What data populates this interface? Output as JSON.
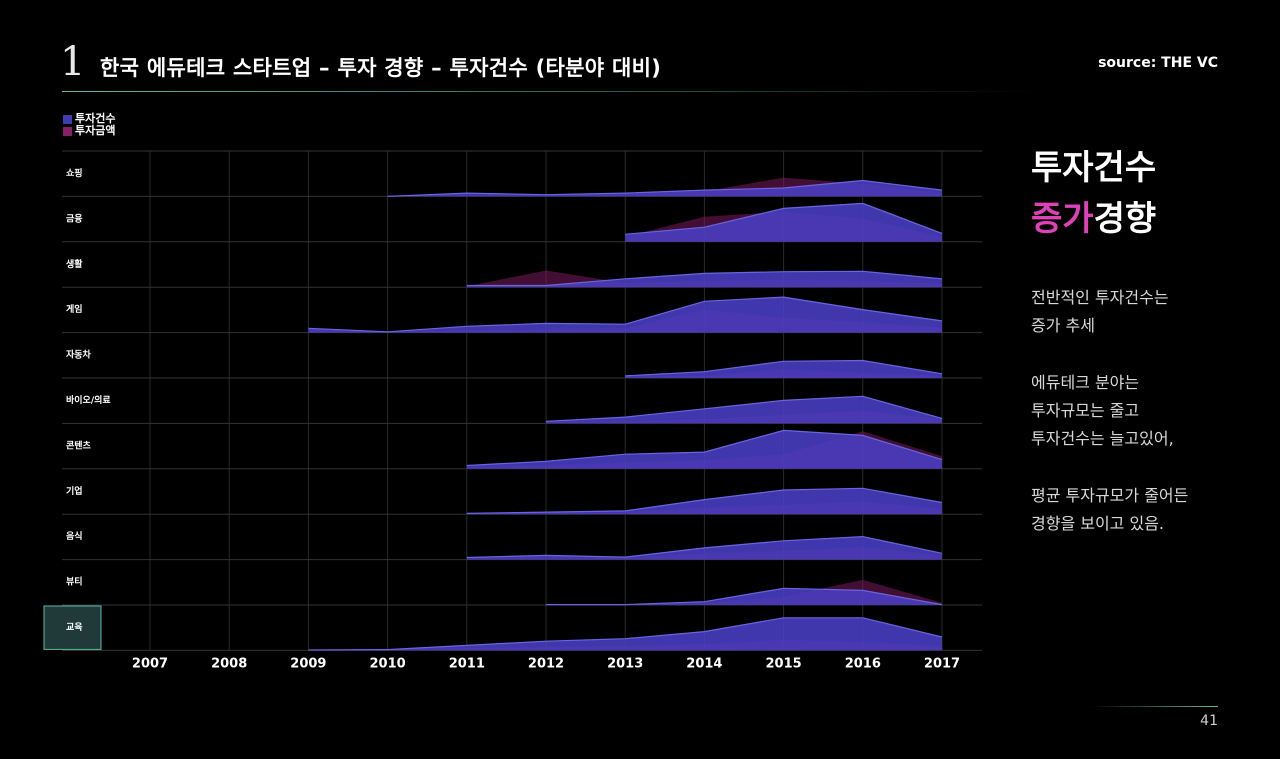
{
  "header": {
    "slide_number": "1",
    "title": "한국 에듀테크 스타트업 – 투자 경향 – 투자건수 (타분야 대비)",
    "source": "source: THE VC"
  },
  "legend": {
    "items": [
      {
        "label": "투자건수",
        "color": "#3f3cb0"
      },
      {
        "label": "투자금액",
        "color": "#8a1e6a"
      }
    ]
  },
  "sidebar": {
    "heading_line1": "투자건수",
    "heading_accent": "증가",
    "heading_rest": "경향",
    "paragraphs": [
      {
        "line1": "전반적인 투자건수는",
        "line2": "증가 추세",
        "line3": ""
      },
      {
        "line1": "에듀테크 분야는",
        "line2": "투자규모는 줄고",
        "line3": "투자건수는 늘고있어,"
      },
      {
        "line1": "평균 투자규모가 줄어든",
        "line2": "경향을 보이고 있음.",
        "line3": ""
      }
    ]
  },
  "footer": {
    "page_number": "41"
  },
  "colors": {
    "count_fill": "#4a3fc4",
    "amount_fill": "#7a1a5e",
    "highlight_box": "#1f3a38",
    "highlight_border": "#5fb8a6",
    "accent": "#e040b8"
  },
  "chart_data": {
    "type": "area",
    "subtype": "ridgeline",
    "x": [
      2007,
      2008,
      2009,
      2010,
      2011,
      2012,
      2013,
      2014,
      2015,
      2016,
      2017
    ],
    "highlight_category": "교육",
    "y_scale": "relative",
    "grid": true,
    "categories": [
      {
        "name": "쇼핑",
        "count": [
          null,
          null,
          null,
          0,
          0.08,
          0.04,
          0.08,
          0.15,
          0.2,
          0.38,
          0.15
        ],
        "amount": [
          null,
          null,
          null,
          0,
          0.02,
          0.02,
          0.04,
          0.12,
          0.45,
          0.3,
          0.08
        ]
      },
      {
        "name": "금융",
        "count": [
          null,
          null,
          null,
          null,
          null,
          null,
          0.18,
          0.35,
          0.8,
          0.92,
          0.2
        ],
        "amount": [
          null,
          null,
          null,
          null,
          null,
          null,
          0.12,
          0.6,
          0.72,
          0.55,
          0.12
        ]
      },
      {
        "name": "생활",
        "count": [
          null,
          null,
          null,
          null,
          0.04,
          0.04,
          0.2,
          0.33,
          0.37,
          0.38,
          0.2
        ],
        "amount": [
          null,
          null,
          null,
          null,
          0.02,
          0.4,
          0.1,
          0.15,
          0.18,
          0.15,
          0.08
        ]
      },
      {
        "name": "게임",
        "count": [
          null,
          null,
          0.1,
          0.02,
          0.15,
          0.22,
          0.2,
          0.75,
          0.85,
          0.55,
          0.28
        ],
        "amount": [
          null,
          null,
          0.05,
          0.01,
          0.05,
          0.08,
          0.1,
          0.55,
          0.35,
          0.25,
          0.12
        ]
      },
      {
        "name": "자동차",
        "count": [
          null,
          null,
          null,
          null,
          null,
          null,
          0.05,
          0.15,
          0.4,
          0.42,
          0.1
        ],
        "amount": [
          null,
          null,
          null,
          null,
          null,
          null,
          0.02,
          0.05,
          0.2,
          0.12,
          0.05
        ]
      },
      {
        "name": "바이오/의료",
        "count": [
          null,
          null,
          null,
          null,
          null,
          0.05,
          0.15,
          0.35,
          0.55,
          0.65,
          0.12
        ],
        "amount": [
          null,
          null,
          null,
          null,
          null,
          0.02,
          0.05,
          0.1,
          0.2,
          0.3,
          0.1
        ]
      },
      {
        "name": "콘텐츠",
        "count": [
          null,
          null,
          null,
          null,
          0.08,
          0.18,
          0.35,
          0.4,
          0.92,
          0.8,
          0.22
        ],
        "amount": [
          null,
          null,
          null,
          null,
          0.04,
          0.08,
          0.15,
          0.2,
          0.35,
          0.9,
          0.3
        ]
      },
      {
        "name": "기업",
        "count": [
          null,
          null,
          null,
          null,
          0.02,
          0.05,
          0.08,
          0.35,
          0.58,
          0.62,
          0.28
        ],
        "amount": [
          null,
          null,
          null,
          null,
          0.01,
          0.02,
          0.04,
          0.15,
          0.22,
          0.3,
          0.12
        ]
      },
      {
        "name": "음식",
        "count": [
          null,
          null,
          null,
          null,
          0.05,
          0.1,
          0.06,
          0.28,
          0.45,
          0.55,
          0.15
        ],
        "amount": [
          null,
          null,
          null,
          null,
          0.02,
          0.04,
          0.03,
          0.15,
          0.2,
          0.3,
          0.1
        ]
      },
      {
        "name": "뷰티",
        "count": [
          null,
          null,
          null,
          null,
          null,
          0.01,
          0.01,
          0.08,
          0.4,
          0.35,
          0.01
        ],
        "amount": [
          null,
          null,
          null,
          null,
          null,
          0.005,
          0.005,
          0.04,
          0.2,
          0.6,
          0.05
        ]
      },
      {
        "name": "교육",
        "count": [
          null,
          null,
          0.01,
          0.02,
          0.12,
          0.22,
          0.28,
          0.45,
          0.78,
          0.78,
          0.32
        ],
        "amount": [
          null,
          null,
          0.005,
          0.01,
          0.05,
          0.08,
          0.1,
          0.15,
          0.25,
          0.2,
          0.1
        ]
      }
    ]
  }
}
